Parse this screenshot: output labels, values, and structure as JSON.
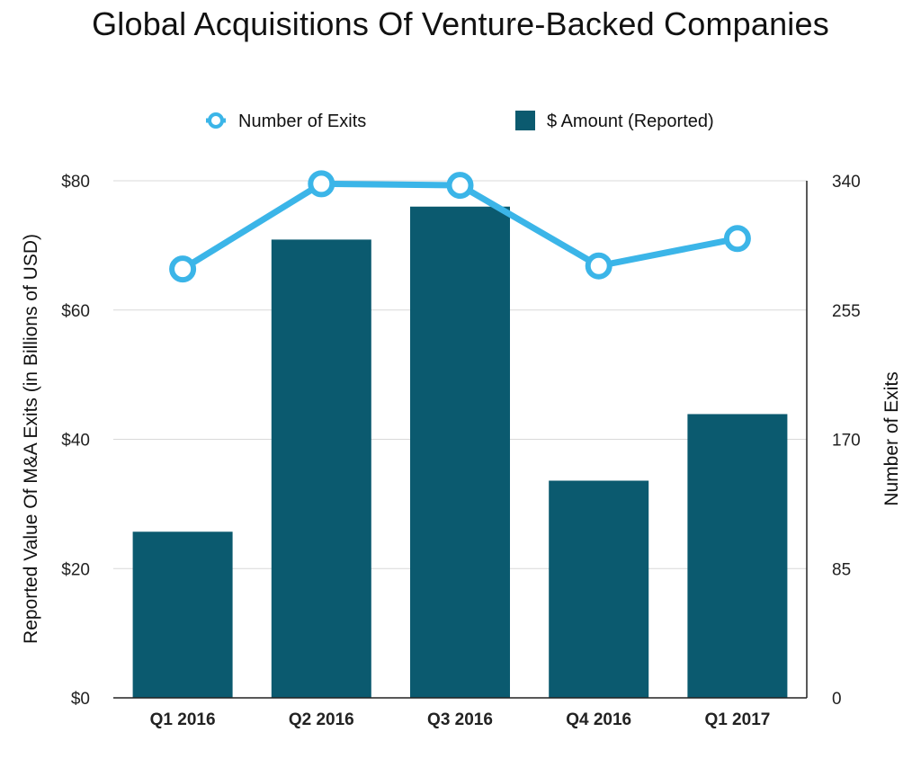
{
  "chart_data": {
    "type": "bar",
    "title": "Global Acquisitions Of Venture-Backed Companies",
    "categories": [
      "Q1 2016",
      "Q2 2016",
      "Q3 2016",
      "Q4 2016",
      "Q1 2017"
    ],
    "series": [
      {
        "name": "$ Amount (Reported)",
        "type": "bar",
        "axis": "left",
        "color": "#0b5a6f",
        "values": [
          25.7,
          70.9,
          76.0,
          33.6,
          43.9
        ]
      },
      {
        "name": "Number of Exits",
        "type": "line",
        "axis": "right",
        "color": "#3bb5e8",
        "values": [
          282,
          338,
          337,
          284,
          302
        ]
      }
    ],
    "ylabel": "Reported Value Of M&A Exits (in Billions of USD)",
    "ylabel_right": "Number of Exits",
    "ylim": [
      0,
      80
    ],
    "ylim_right": [
      0,
      340
    ],
    "yticks": [
      "$0",
      "$20",
      "$40",
      "$60",
      "$80"
    ],
    "yticks_right": [
      "0",
      "85",
      "170",
      "255",
      "340"
    ],
    "legend_position": "top",
    "grid": true
  }
}
